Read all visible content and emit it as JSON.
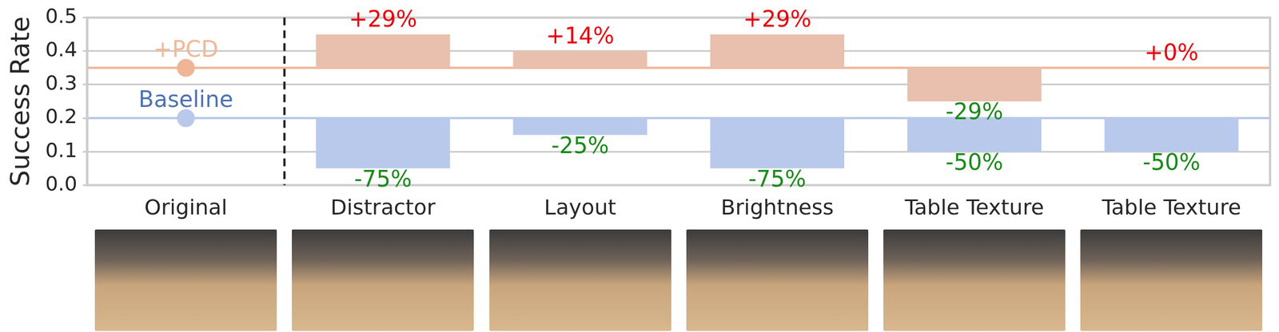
{
  "chart_data": {
    "type": "bar",
    "y_label": "Success Rate",
    "categories": [
      "Original",
      "Distractor",
      "Layout",
      "Brightness",
      "Table Texture",
      "Table Texture"
    ],
    "series": [
      {
        "name": "+PCD",
        "color": "#e8c0ad",
        "values": [
          0.35,
          0.45,
          0.4,
          0.45,
          0.25,
          0.35
        ],
        "change_labels": [
          null,
          "+29%",
          "+14%",
          "+29%",
          "-29%",
          "+0%"
        ]
      },
      {
        "name": "Baseline",
        "color": "#b9c9ec",
        "values": [
          0.2,
          0.05,
          0.15,
          0.05,
          0.1,
          0.1
        ],
        "change_labels": [
          null,
          "-75%",
          "-25%",
          "-75%",
          "-50%",
          "-50%"
        ]
      }
    ],
    "ylim": [
      0,
      0.5
    ],
    "yticks": [
      {
        "value": 0,
        "label": "0.0"
      },
      0.1,
      0.2,
      0.3,
      0.4,
      0.5
    ],
    "grid": true
  }
}
